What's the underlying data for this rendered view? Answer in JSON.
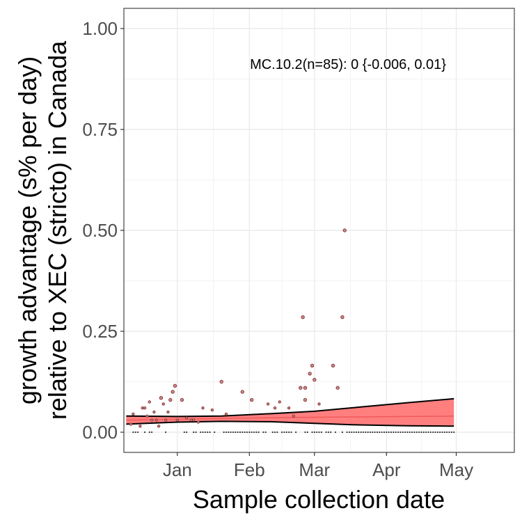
{
  "chart_data": {
    "type": "scatter",
    "title": "",
    "xlabel": "Sample collection date",
    "ylabel_lines": [
      "growth advantage (s% per day)",
      "relative to XEC (stricto) in Canada"
    ],
    "annotation": "MC.10.2(n=85): 0 {-0.006, 0.01}",
    "x_ticks": [
      {
        "date": "2025-01-01",
        "label": "Jan"
      },
      {
        "date": "2025-02-01",
        "label": "Feb"
      },
      {
        "date": "2025-03-01",
        "label": "Mar"
      },
      {
        "date": "2025-04-01",
        "label": "Apr"
      },
      {
        "date": "2025-05-01",
        "label": "May"
      }
    ],
    "y_ticks": [
      {
        "value": 0,
        "label": "0.00"
      },
      {
        "value": 0.25,
        "label": "0.25"
      },
      {
        "value": 0.5,
        "label": "0.50"
      },
      {
        "value": 0.75,
        "label": "0.75"
      },
      {
        "value": 1,
        "label": "1.00"
      }
    ],
    "xlim": [
      "2024-12-09",
      "2025-05-26"
    ],
    "ylim": [
      -0.05,
      1.05
    ],
    "grid": true,
    "colors": {
      "ribbon": "#ff7f7f",
      "fit_line": "#f05a5a",
      "point": "#8b3a3a",
      "band_edge": "#000000"
    },
    "points": [
      {
        "date": "2024-12-12",
        "y": 0.02
      },
      {
        "date": "2024-12-13",
        "y": 0.045
      },
      {
        "date": "2024-12-16",
        "y": 0.015
      },
      {
        "date": "2024-12-17",
        "y": 0.06
      },
      {
        "date": "2024-12-18",
        "y": 0.06
      },
      {
        "date": "2024-12-19",
        "y": 0.04
      },
      {
        "date": "2024-12-20",
        "y": 0.075
      },
      {
        "date": "2024-12-21",
        "y": 0.03
      },
      {
        "date": "2024-12-22",
        "y": 0.05
      },
      {
        "date": "2024-12-23",
        "y": 0.03
      },
      {
        "date": "2024-12-24",
        "y": 0.015
      },
      {
        "date": "2024-12-25",
        "y": 0.085
      },
      {
        "date": "2024-12-26",
        "y": 0.07
      },
      {
        "date": "2024-12-27",
        "y": 0.03
      },
      {
        "date": "2024-12-28",
        "y": 0.05
      },
      {
        "date": "2024-12-29",
        "y": 0.08
      },
      {
        "date": "2024-12-30",
        "y": 0.1
      },
      {
        "date": "2024-12-31",
        "y": 0.115
      },
      {
        "date": "2025-01-01",
        "y": 0.03
      },
      {
        "date": "2025-01-03",
        "y": 0.08
      },
      {
        "date": "2025-01-05",
        "y": 0.035
      },
      {
        "date": "2025-01-07",
        "y": 0.03
      },
      {
        "date": "2025-01-08",
        "y": 0.03
      },
      {
        "date": "2025-01-10",
        "y": 0.025
      },
      {
        "date": "2025-01-12",
        "y": 0.06
      },
      {
        "date": "2025-01-16",
        "y": 0.055
      },
      {
        "date": "2025-01-20",
        "y": 0.125
      },
      {
        "date": "2025-01-22",
        "y": 0.045
      },
      {
        "date": "2025-01-29",
        "y": 0.1
      },
      {
        "date": "2025-02-02",
        "y": 0.08
      },
      {
        "date": "2025-02-09",
        "y": 0.07
      },
      {
        "date": "2025-02-12",
        "y": 0.06
      },
      {
        "date": "2025-02-14",
        "y": 0.075
      },
      {
        "date": "2025-02-18",
        "y": 0.06
      },
      {
        "date": "2025-02-20",
        "y": 0.04
      },
      {
        "date": "2025-02-23",
        "y": 0.11
      },
      {
        "date": "2025-02-24",
        "y": 0.285
      },
      {
        "date": "2025-02-25",
        "y": 0.11
      },
      {
        "date": "2025-02-25",
        "y": 0.08
      },
      {
        "date": "2025-02-27",
        "y": 0.145
      },
      {
        "date": "2025-02-28",
        "y": 0.165
      },
      {
        "date": "2025-03-01",
        "y": 0.13
      },
      {
        "date": "2025-03-03",
        "y": 0.07
      },
      {
        "date": "2025-03-09",
        "y": 0.165
      },
      {
        "date": "2025-03-11",
        "y": 0.11
      },
      {
        "date": "2025-03-13",
        "y": 0.285
      },
      {
        "date": "2025-03-14",
        "y": 0.5
      }
    ],
    "zero_point_dates": [
      "2024-12-13",
      "2024-12-14",
      "2024-12-15",
      "2024-12-18",
      "2024-12-20",
      "2024-12-21",
      "2024-12-27",
      "2025-01-04",
      "2025-01-05",
      "2025-01-08",
      "2025-01-09",
      "2025-01-11",
      "2025-01-12",
      "2025-01-13",
      "2025-01-14",
      "2025-01-15",
      "2025-01-17",
      "2025-01-21",
      "2025-01-22",
      "2025-01-23",
      "2025-01-24",
      "2025-01-25",
      "2025-01-26",
      "2025-01-27",
      "2025-01-28",
      "2025-01-29",
      "2025-01-30",
      "2025-01-31",
      "2025-02-01",
      "2025-02-02",
      "2025-02-03",
      "2025-02-04",
      "2025-02-05",
      "2025-02-07",
      "2025-02-08",
      "2025-02-11",
      "2025-02-12",
      "2025-02-13",
      "2025-02-15",
      "2025-02-16",
      "2025-02-17",
      "2025-02-18",
      "2025-02-19",
      "2025-02-21",
      "2025-02-25",
      "2025-02-26",
      "2025-02-28",
      "2025-03-01",
      "2025-03-02",
      "2025-03-03",
      "2025-03-04",
      "2025-03-06",
      "2025-03-07",
      "2025-03-08",
      "2025-03-10",
      "2025-03-13",
      "2025-03-15",
      "2025-03-16",
      "2025-03-17",
      "2025-03-18",
      "2025-03-19",
      "2025-03-20",
      "2025-03-21",
      "2025-03-22",
      "2025-03-23",
      "2025-03-24",
      "2025-03-25",
      "2025-03-26",
      "2025-03-27",
      "2025-03-28",
      "2025-03-29",
      "2025-03-30",
      "2025-03-31",
      "2025-04-01",
      "2025-04-02",
      "2025-04-03",
      "2025-04-04",
      "2025-04-05",
      "2025-04-06",
      "2025-04-07",
      "2025-04-08",
      "2025-04-09",
      "2025-04-10",
      "2025-04-11",
      "2025-04-12",
      "2025-04-13",
      "2025-04-14",
      "2025-04-15",
      "2025-04-16",
      "2025-04-17",
      "2025-04-18",
      "2025-04-19",
      "2025-04-20",
      "2025-04-21",
      "2025-04-22",
      "2025-04-23",
      "2025-04-24",
      "2025-04-25",
      "2025-04-26",
      "2025-04-27",
      "2025-04-28",
      "2025-04-29",
      "2025-04-30"
    ],
    "fit": [
      {
        "date": "2024-12-10",
        "y": 0.03,
        "lower": 0.02,
        "upper": 0.04
      },
      {
        "date": "2025-01-01",
        "y": 0.032,
        "lower": 0.025,
        "upper": 0.039
      },
      {
        "date": "2025-01-20",
        "y": 0.034,
        "lower": 0.027,
        "upper": 0.04
      },
      {
        "date": "2025-02-10",
        "y": 0.036,
        "lower": 0.026,
        "upper": 0.046
      },
      {
        "date": "2025-03-01",
        "y": 0.037,
        "lower": 0.022,
        "upper": 0.052
      },
      {
        "date": "2025-03-20",
        "y": 0.038,
        "lower": 0.018,
        "upper": 0.062
      },
      {
        "date": "2025-04-10",
        "y": 0.039,
        "lower": 0.016,
        "upper": 0.073
      },
      {
        "date": "2025-04-30",
        "y": 0.04,
        "lower": 0.015,
        "upper": 0.083
      }
    ]
  }
}
